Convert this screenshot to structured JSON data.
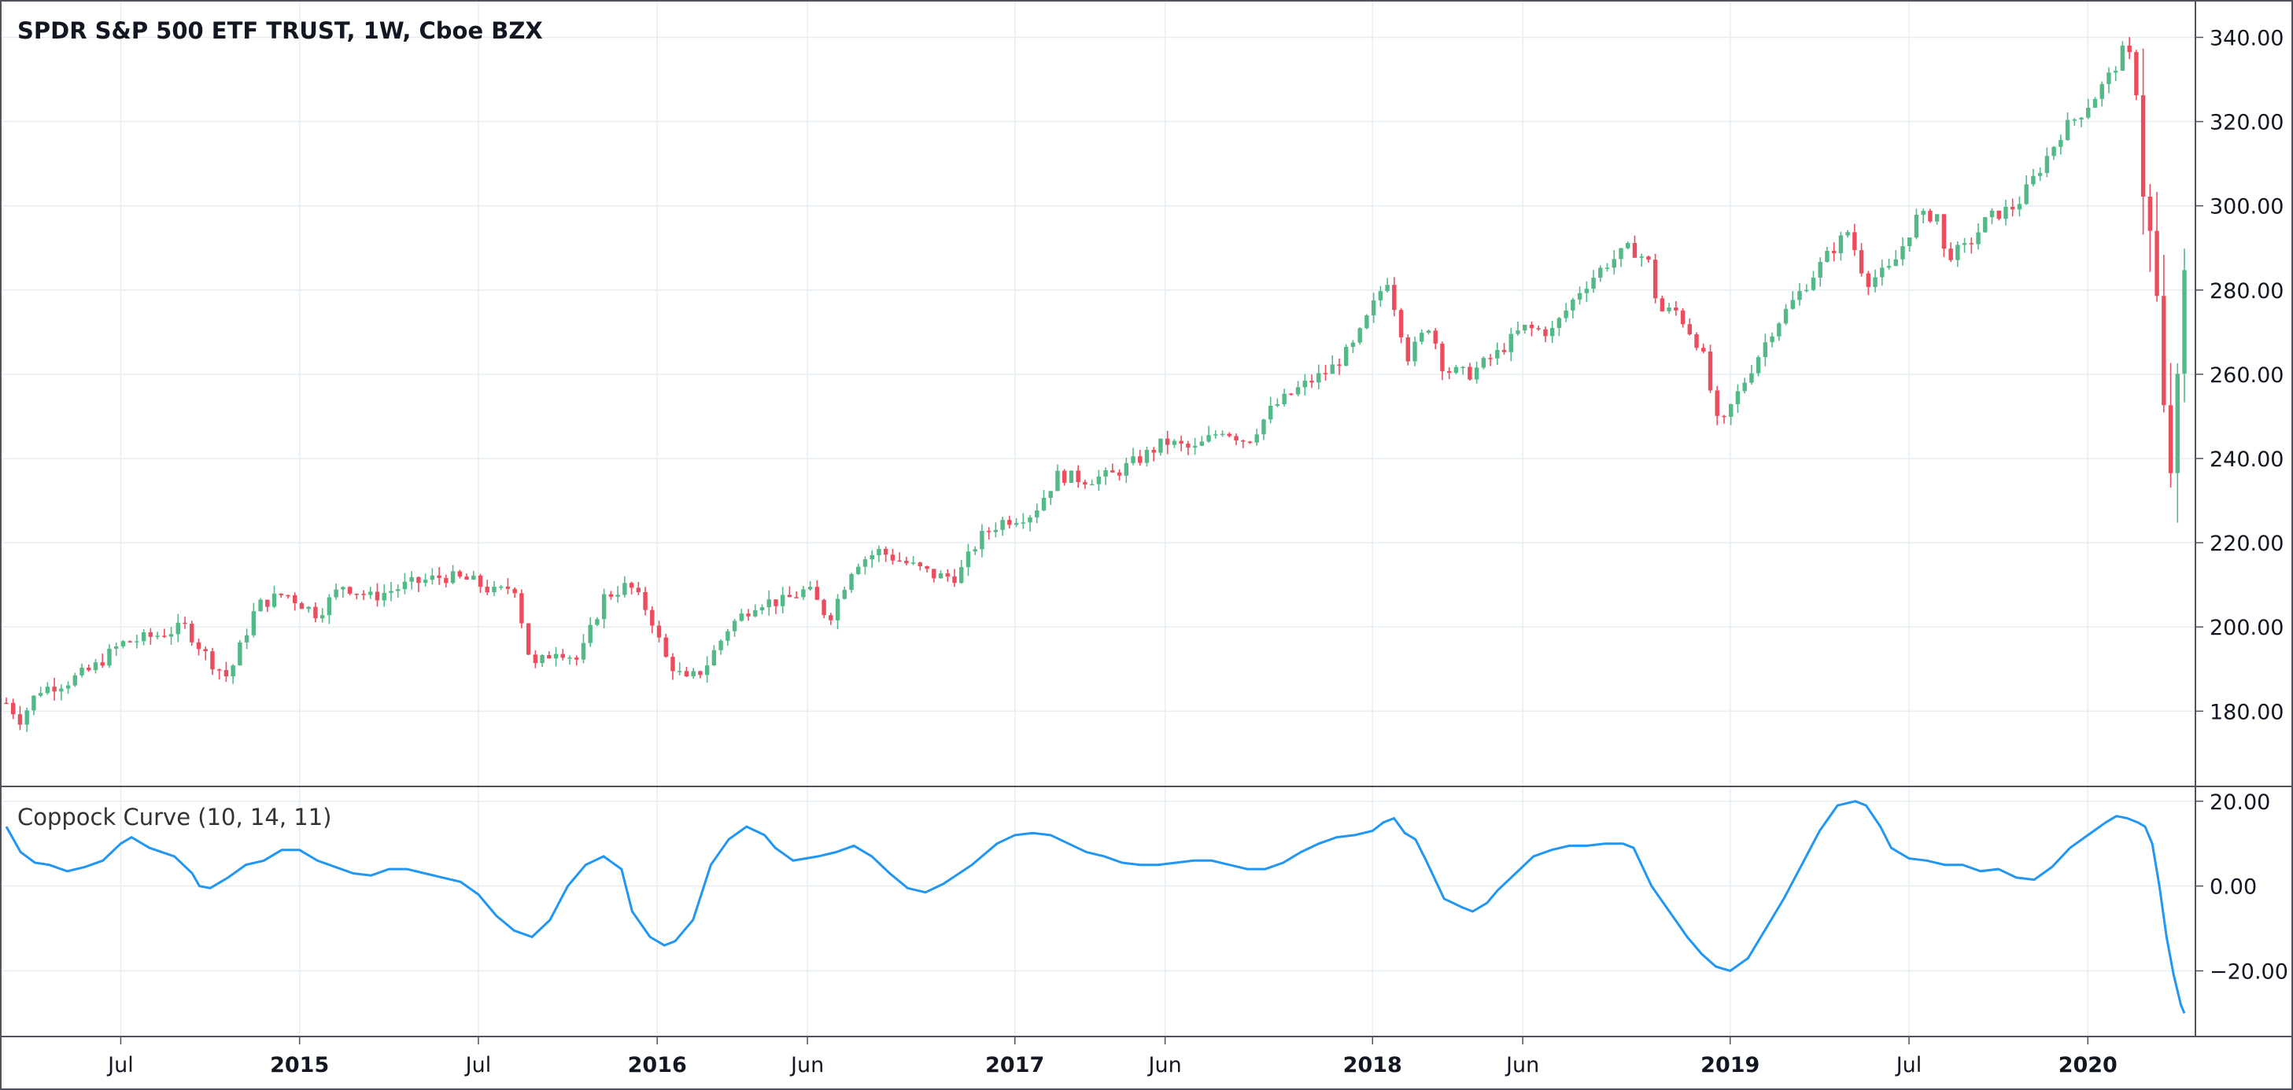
{
  "header": {
    "title": "SPDR S&P 500 ETF TRUST, 1W, Cboe BZX"
  },
  "indicator": {
    "label": "Coppock Curve (10, 14, 11)"
  },
  "colors": {
    "up": "#26a69a",
    "up_body": "#53b987",
    "down": "#ef5350",
    "down_body": "#eb4d5c",
    "line": "#2196f3",
    "grid": "#e6eef3",
    "axis_text": "#131722",
    "border": "#50535e"
  },
  "chart_data": [
    {
      "type": "candlestick",
      "title": "SPDR S&P 500 ETF TRUST, 1W, Cboe BZX",
      "timeframe": "1W",
      "y_ticks": [
        "180.00",
        "200.00",
        "220.00",
        "240.00",
        "260.00",
        "280.00",
        "300.00",
        "320.00",
        "340.00"
      ],
      "ylim": [
        164,
        347
      ],
      "x_range": [
        2014.18,
        2020.27
      ],
      "x_ticks": [
        {
          "label": "Jul",
          "t": 2014.5,
          "bold": false
        },
        {
          "label": "2015",
          "t": 2015.0,
          "bold": true
        },
        {
          "label": "Jul",
          "t": 2015.5,
          "bold": false
        },
        {
          "label": "2016",
          "t": 2016.0,
          "bold": true
        },
        {
          "label": "Jun",
          "t": 2016.42,
          "bold": false
        },
        {
          "label": "2017",
          "t": 2017.0,
          "bold": true
        },
        {
          "label": "Jun",
          "t": 2017.42,
          "bold": false
        },
        {
          "label": "2018",
          "t": 2018.0,
          "bold": true
        },
        {
          "label": "Jun",
          "t": 2018.42,
          "bold": false
        },
        {
          "label": "2019",
          "t": 2019.0,
          "bold": true
        },
        {
          "label": "Jul",
          "t": 2019.5,
          "bold": false
        },
        {
          "label": "2020",
          "t": 2020.0,
          "bold": true
        }
      ],
      "price_anchors": [
        [
          2014.18,
          182
        ],
        [
          2014.22,
          178
        ],
        [
          2014.27,
          185
        ],
        [
          2014.35,
          187
        ],
        [
          2014.42,
          190
        ],
        [
          2014.5,
          196
        ],
        [
          2014.6,
          198
        ],
        [
          2014.68,
          200
        ],
        [
          2014.75,
          192
        ],
        [
          2014.8,
          188
        ],
        [
          2014.88,
          205
        ],
        [
          2014.96,
          208
        ],
        [
          2015.05,
          203
        ],
        [
          2015.12,
          210
        ],
        [
          2015.2,
          207
        ],
        [
          2015.3,
          210
        ],
        [
          2015.4,
          212
        ],
        [
          2015.48,
          211
        ],
        [
          2015.55,
          208
        ],
        [
          2015.6,
          210
        ],
        [
          2015.65,
          190
        ],
        [
          2015.72,
          195
        ],
        [
          2015.78,
          192
        ],
        [
          2015.85,
          207
        ],
        [
          2015.92,
          210
        ],
        [
          2015.98,
          203
        ],
        [
          2016.02,
          193
        ],
        [
          2016.08,
          187
        ],
        [
          2016.13,
          190
        ],
        [
          2016.2,
          200
        ],
        [
          2016.28,
          206
        ],
        [
          2016.35,
          206
        ],
        [
          2016.42,
          209
        ],
        [
          2016.48,
          202
        ],
        [
          2016.55,
          215
        ],
        [
          2016.62,
          218
        ],
        [
          2016.7,
          215
        ],
        [
          2016.78,
          212
        ],
        [
          2016.84,
          212
        ],
        [
          2016.9,
          221
        ],
        [
          2016.96,
          225
        ],
        [
          2017.05,
          227
        ],
        [
          2017.12,
          236
        ],
        [
          2017.2,
          235
        ],
        [
          2017.27,
          236
        ],
        [
          2017.35,
          240
        ],
        [
          2017.42,
          244
        ],
        [
          2017.5,
          242
        ],
        [
          2017.58,
          247
        ],
        [
          2017.65,
          244
        ],
        [
          2017.72,
          252
        ],
        [
          2017.8,
          257
        ],
        [
          2017.88,
          261
        ],
        [
          2017.95,
          267
        ],
        [
          2018.04,
          283
        ],
        [
          2018.1,
          264
        ],
        [
          2018.16,
          272
        ],
        [
          2018.2,
          261
        ],
        [
          2018.27,
          260
        ],
        [
          2018.35,
          265
        ],
        [
          2018.42,
          271
        ],
        [
          2018.5,
          270
        ],
        [
          2018.58,
          280
        ],
        [
          2018.65,
          286
        ],
        [
          2018.72,
          290
        ],
        [
          2018.77,
          287
        ],
        [
          2018.8,
          275
        ],
        [
          2018.85,
          275
        ],
        [
          2018.92,
          266
        ],
        [
          2018.97,
          246
        ],
        [
          2019.0,
          252
        ],
        [
          2019.05,
          260
        ],
        [
          2019.12,
          271
        ],
        [
          2019.2,
          280
        ],
        [
          2019.27,
          288
        ],
        [
          2019.33,
          294
        ],
        [
          2019.38,
          282
        ],
        [
          2019.45,
          285
        ],
        [
          2019.52,
          297
        ],
        [
          2019.58,
          298
        ],
        [
          2019.6,
          288
        ],
        [
          2019.66,
          290
        ],
        [
          2019.72,
          297
        ],
        [
          2019.8,
          300
        ],
        [
          2019.86,
          308
        ],
        [
          2019.93,
          318
        ],
        [
          2019.98,
          322
        ],
        [
          2020.02,
          326
        ],
        [
          2020.07,
          332
        ],
        [
          2020.1,
          337
        ],
        [
          2020.13,
          334
        ],
        [
          2020.15,
          310
        ],
        [
          2020.17,
          295
        ],
        [
          2020.2,
          270
        ],
        [
          2020.22,
          234
        ],
        [
          2020.24,
          242
        ],
        [
          2020.26,
          262
        ],
        [
          2020.27,
          280
        ]
      ]
    },
    {
      "type": "line",
      "name": "Coppock Curve (10, 14, 11)",
      "y_ticks": [
        "−20.00",
        "0.00",
        "20.00"
      ],
      "ylim": [
        -34,
        22
      ],
      "points": [
        [
          2014.18,
          14
        ],
        [
          2014.22,
          8
        ],
        [
          2014.26,
          5.5
        ],
        [
          2014.3,
          5
        ],
        [
          2014.35,
          3.5
        ],
        [
          2014.4,
          4.5
        ],
        [
          2014.45,
          6
        ],
        [
          2014.5,
          10
        ],
        [
          2014.53,
          11.5
        ],
        [
          2014.58,
          9
        ],
        [
          2014.65,
          7
        ],
        [
          2014.7,
          3
        ],
        [
          2014.72,
          0
        ],
        [
          2014.75,
          -0.5
        ],
        [
          2014.8,
          2
        ],
        [
          2014.85,
          5
        ],
        [
          2014.9,
          6
        ],
        [
          2014.95,
          8.5
        ],
        [
          2015.0,
          8.5
        ],
        [
          2015.05,
          6
        ],
        [
          2015.1,
          4.5
        ],
        [
          2015.15,
          3
        ],
        [
          2015.2,
          2.5
        ],
        [
          2015.25,
          4
        ],
        [
          2015.3,
          4
        ],
        [
          2015.35,
          3
        ],
        [
          2015.4,
          2
        ],
        [
          2015.45,
          1
        ],
        [
          2015.5,
          -2
        ],
        [
          2015.55,
          -7
        ],
        [
          2015.6,
          -10.5
        ],
        [
          2015.65,
          -12
        ],
        [
          2015.7,
          -8
        ],
        [
          2015.75,
          0
        ],
        [
          2015.8,
          5
        ],
        [
          2015.85,
          7
        ],
        [
          2015.9,
          4
        ],
        [
          2015.93,
          -6
        ],
        [
          2015.98,
          -12
        ],
        [
          2016.02,
          -14
        ],
        [
          2016.05,
          -13
        ],
        [
          2016.1,
          -8
        ],
        [
          2016.15,
          5
        ],
        [
          2016.2,
          11
        ],
        [
          2016.25,
          14
        ],
        [
          2016.3,
          12
        ],
        [
          2016.33,
          9
        ],
        [
          2016.38,
          6
        ],
        [
          2016.45,
          7
        ],
        [
          2016.5,
          8
        ],
        [
          2016.55,
          9.5
        ],
        [
          2016.6,
          7
        ],
        [
          2016.65,
          3
        ],
        [
          2016.7,
          -0.5
        ],
        [
          2016.75,
          -1.5
        ],
        [
          2016.8,
          0.5
        ],
        [
          2016.88,
          5
        ],
        [
          2016.95,
          10
        ],
        [
          2017.0,
          12
        ],
        [
          2017.05,
          12.5
        ],
        [
          2017.1,
          12
        ],
        [
          2017.15,
          10
        ],
        [
          2017.2,
          8
        ],
        [
          2017.25,
          7
        ],
        [
          2017.3,
          5.5
        ],
        [
          2017.35,
          5
        ],
        [
          2017.4,
          5
        ],
        [
          2017.45,
          5.5
        ],
        [
          2017.5,
          6
        ],
        [
          2017.55,
          6
        ],
        [
          2017.6,
          5
        ],
        [
          2017.65,
          4
        ],
        [
          2017.7,
          4
        ],
        [
          2017.75,
          5.5
        ],
        [
          2017.8,
          8
        ],
        [
          2017.85,
          10
        ],
        [
          2017.9,
          11.5
        ],
        [
          2017.95,
          12
        ],
        [
          2018.0,
          13
        ],
        [
          2018.03,
          15
        ],
        [
          2018.06,
          16
        ],
        [
          2018.09,
          12.5
        ],
        [
          2018.12,
          11
        ],
        [
          2018.15,
          6
        ],
        [
          2018.2,
          -3
        ],
        [
          2018.25,
          -5
        ],
        [
          2018.28,
          -6
        ],
        [
          2018.32,
          -4
        ],
        [
          2018.35,
          -1
        ],
        [
          2018.4,
          3
        ],
        [
          2018.45,
          7
        ],
        [
          2018.5,
          8.5
        ],
        [
          2018.55,
          9.5
        ],
        [
          2018.6,
          9.5
        ],
        [
          2018.65,
          10
        ],
        [
          2018.7,
          10
        ],
        [
          2018.73,
          9
        ],
        [
          2018.78,
          0
        ],
        [
          2018.83,
          -6
        ],
        [
          2018.88,
          -12
        ],
        [
          2018.92,
          -16
        ],
        [
          2018.96,
          -19
        ],
        [
          2019.0,
          -20
        ],
        [
          2019.05,
          -17
        ],
        [
          2019.1,
          -10
        ],
        [
          2019.15,
          -3
        ],
        [
          2019.2,
          5
        ],
        [
          2019.25,
          13
        ],
        [
          2019.3,
          19
        ],
        [
          2019.35,
          20
        ],
        [
          2019.38,
          19
        ],
        [
          2019.42,
          14
        ],
        [
          2019.45,
          9
        ],
        [
          2019.5,
          6.5
        ],
        [
          2019.55,
          6
        ],
        [
          2019.6,
          5
        ],
        [
          2019.65,
          5
        ],
        [
          2019.7,
          3.5
        ],
        [
          2019.75,
          4
        ],
        [
          2019.8,
          2
        ],
        [
          2019.85,
          1.5
        ],
        [
          2019.9,
          4.5
        ],
        [
          2019.95,
          9
        ],
        [
          2020.0,
          12
        ],
        [
          2020.05,
          15
        ],
        [
          2020.08,
          16.5
        ],
        [
          2020.11,
          16
        ],
        [
          2020.14,
          15
        ],
        [
          2020.16,
          14
        ],
        [
          2020.18,
          10
        ],
        [
          2020.2,
          0
        ],
        [
          2020.22,
          -12
        ],
        [
          2020.24,
          -21
        ],
        [
          2020.26,
          -28
        ],
        [
          2020.27,
          -30
        ]
      ]
    }
  ]
}
